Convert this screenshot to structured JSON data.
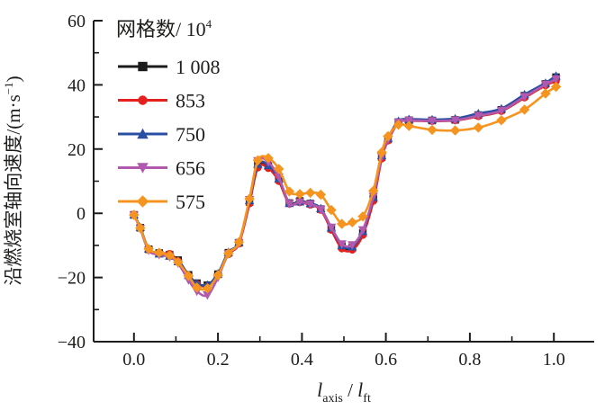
{
  "figure": {
    "background": "#ffffff",
    "axis_color": "#1d1d1b",
    "text_color": "#1d1d1b"
  },
  "chart_data": {
    "type": "line",
    "title": "",
    "xlabel_parts": {
      "var1": "l",
      "sub1": "axis",
      "sep": " / ",
      "var2": "l",
      "sub2": "ft"
    },
    "ylabel_parts": {
      "main": "沿燃烧室轴向速度/(m·s",
      "sup": "−1",
      "close": ")"
    },
    "xlim": [
      -0.096,
      1.096
    ],
    "ylim": [
      -40,
      60
    ],
    "grid": false,
    "x_major_ticks": [
      0.0,
      0.2,
      0.4,
      0.6,
      0.8,
      1.0
    ],
    "x_tick_labels": [
      "0.0",
      "0.2",
      "0.4",
      "0.6",
      "0.8",
      "1.0"
    ],
    "x_minor_ticks": [
      0.1,
      0.3,
      0.5,
      0.7,
      0.9
    ],
    "y_major_ticks": [
      -40,
      -20,
      0,
      20,
      40,
      60
    ],
    "y_tick_labels": [
      "−40",
      "−20",
      "0",
      "20",
      "40",
      "60"
    ],
    "y_minor_ticks": [
      -30,
      -10,
      10,
      30,
      50
    ],
    "legend": {
      "position": "top-left",
      "title": "网格数/ 10",
      "title_sup": "4"
    },
    "x": [
      0.0,
      0.015,
      0.035,
      0.06,
      0.085,
      0.105,
      0.13,
      0.15,
      0.175,
      0.2,
      0.225,
      0.25,
      0.275,
      0.295,
      0.32,
      0.345,
      0.37,
      0.395,
      0.42,
      0.445,
      0.47,
      0.495,
      0.52,
      0.545,
      0.57,
      0.59,
      0.605,
      0.63,
      0.655,
      0.71,
      0.765,
      0.82,
      0.875,
      0.93,
      0.98,
      1.005
    ],
    "series": [
      {
        "name": "1 008",
        "color": "#1c1c1c",
        "marker": "square",
        "y": [
          -0.5,
          -4.5,
          -11.2,
          -12.4,
          -12.9,
          -14.6,
          -19.2,
          -21.8,
          -22.4,
          -19.0,
          -12.3,
          -9.2,
          3.5,
          15.0,
          14.7,
          10.6,
          3.2,
          3.8,
          3.0,
          1.3,
          -4.8,
          -10.3,
          -10.7,
          -6.2,
          4.5,
          17.5,
          23.0,
          28.4,
          29.0,
          28.9,
          29.1,
          30.6,
          32.2,
          36.6,
          40.3,
          42.4
        ]
      },
      {
        "name": "853",
        "color": "#e4211f",
        "marker": "circle",
        "y": [
          -0.5,
          -4.6,
          -11.4,
          -12.5,
          -12.6,
          -14.9,
          -19.5,
          -22.0,
          -22.7,
          -19.2,
          -12.8,
          -9.5,
          3.0,
          14.2,
          14.0,
          10.0,
          2.9,
          3.4,
          2.6,
          1.0,
          -5.2,
          -11.0,
          -11.4,
          -6.8,
          3.8,
          17.0,
          22.6,
          28.2,
          28.8,
          28.7,
          28.9,
          30.2,
          31.8,
          36.0,
          39.8,
          41.2
        ]
      },
      {
        "name": "750",
        "color": "#2a4fa2",
        "marker": "triangle-up",
        "y": [
          -0.4,
          -4.3,
          -11.0,
          -12.6,
          -13.3,
          -15.0,
          -19.3,
          -21.9,
          -22.3,
          -18.8,
          -12.1,
          -9.0,
          4.0,
          15.3,
          14.9,
          10.8,
          3.1,
          3.6,
          3.1,
          1.5,
          -4.5,
          -10.0,
          -10.4,
          -5.6,
          5.0,
          18.0,
          23.4,
          28.7,
          29.3,
          29.2,
          29.5,
          31.1,
          32.6,
          37.0,
          40.6,
          42.8
        ]
      },
      {
        "name": "656",
        "color": "#b159ae",
        "marker": "triangle-down",
        "y": [
          -0.6,
          -4.8,
          -11.6,
          -12.9,
          -13.6,
          -15.6,
          -20.8,
          -24.3,
          -25.5,
          -20.0,
          -12.6,
          -9.3,
          4.2,
          16.3,
          15.9,
          11.2,
          3.0,
          3.5,
          2.8,
          1.2,
          -4.4,
          -9.6,
          -9.9,
          -5.2,
          5.2,
          17.6,
          23.0,
          28.3,
          28.9,
          28.8,
          29.0,
          30.4,
          32.0,
          36.3,
          40.1,
          41.8
        ]
      },
      {
        "name": "575",
        "color": "#f5941f",
        "marker": "diamond",
        "y": [
          -0.5,
          -4.6,
          -11.1,
          -12.3,
          -13.1,
          -15.2,
          -19.5,
          -23.1,
          -23.4,
          -19.3,
          -12.5,
          -9.0,
          4.5,
          16.5,
          17.2,
          13.8,
          6.8,
          6.0,
          6.4,
          5.8,
          1.0,
          -3.3,
          -2.8,
          -1.0,
          7.0,
          19.0,
          24.0,
          27.6,
          27.2,
          26.0,
          25.8,
          26.7,
          29.0,
          32.3,
          37.3,
          39.4
        ]
      }
    ]
  }
}
